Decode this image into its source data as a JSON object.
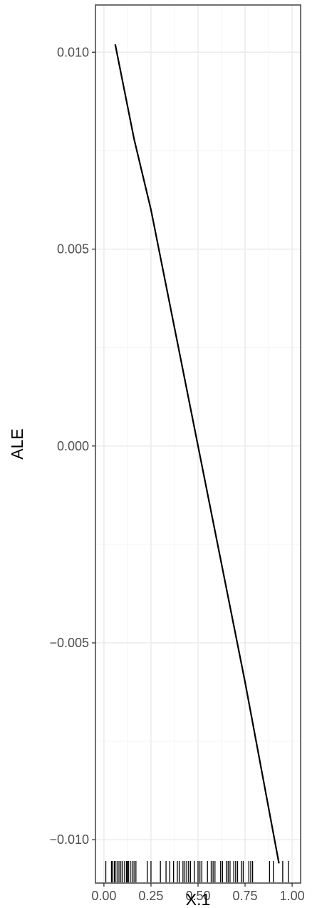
{
  "chart_data": {
    "type": "line",
    "title": "",
    "xlabel": "X.1",
    "ylabel": "ALE",
    "xlim": [
      -0.045,
      1.045
    ],
    "ylim": [
      -0.0111,
      0.0112
    ],
    "x_ticks": [
      0.0,
      0.25,
      0.5,
      0.75,
      1.0
    ],
    "x_tick_labels": [
      "0.00",
      "0.25",
      "0.50",
      "0.75",
      "1.00"
    ],
    "y_ticks": [
      -0.01,
      -0.005,
      0.0,
      0.005,
      0.01
    ],
    "y_tick_labels": [
      "−0.010",
      "−0.005",
      "0.000",
      "0.005",
      "0.010"
    ],
    "grid": true,
    "legend": "none",
    "colors": {
      "line": "#000000",
      "grid_major": "#ebebeb",
      "grid_minor": "#f5f5f5",
      "panel_border": "#333333",
      "tick_label": "#4d4d4d"
    },
    "series": [
      {
        "x": [
          0.06,
          0.16,
          0.25,
          0.5,
          0.75,
          0.93
        ],
        "y": [
          0.0102,
          0.0078,
          0.006,
          0.0,
          -0.006,
          -0.0106
        ]
      }
    ],
    "rug_x": [
      0.01,
      0.04,
      0.045,
      0.055,
      0.06,
      0.07,
      0.08,
      0.09,
      0.1,
      0.11,
      0.12,
      0.125,
      0.13,
      0.14,
      0.15,
      0.16,
      0.17,
      0.23,
      0.25,
      0.3,
      0.33,
      0.35,
      0.37,
      0.39,
      0.4,
      0.42,
      0.43,
      0.44,
      0.45,
      0.46,
      0.48,
      0.5,
      0.51,
      0.52,
      0.55,
      0.57,
      0.58,
      0.59,
      0.62,
      0.63,
      0.65,
      0.66,
      0.67,
      0.69,
      0.7,
      0.71,
      0.73,
      0.74,
      0.77,
      0.78,
      0.79,
      0.88,
      0.9,
      0.95,
      0.98
    ]
  }
}
